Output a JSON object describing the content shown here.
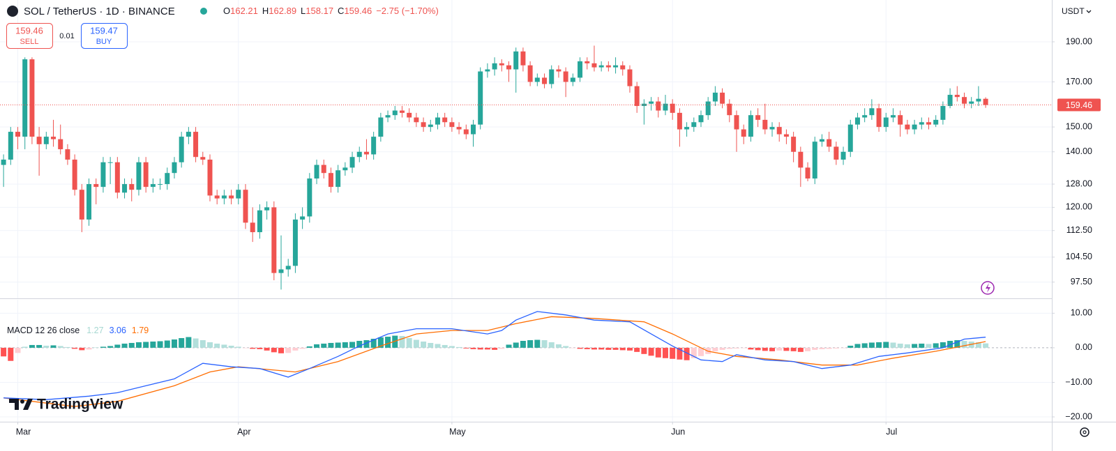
{
  "header": {
    "symbol": "SOL / TetherUS · 1D · BINANCE",
    "o": "O",
    "h": "H",
    "l": "L",
    "c": "C",
    "change": "−2.75 (−1.70%)",
    "currency": "USDT"
  },
  "trade": {
    "sell_price": 159.46,
    "sell": "SELL",
    "spread": 0.01,
    "buy_price": 159.47,
    "buy": "BUY"
  },
  "logo": "TradingView",
  "chart_data": {
    "type": "candlestick",
    "log_scale": true,
    "grid": true,
    "up_color": "#26a69a",
    "down_color": "#ef5350",
    "xlim": [
      -0.5,
      147.3
    ],
    "xticks": [
      {
        "value": 2,
        "label": "Mar"
      },
      {
        "value": 33,
        "label": "Apr"
      },
      {
        "value": 63,
        "label": "May"
      },
      {
        "value": 94,
        "label": "Jun"
      },
      {
        "value": 124,
        "label": "Jul"
      }
    ],
    "ylim": [
      93.2,
      213.4
    ],
    "yticks": [
      {
        "value": 97.5,
        "label": "97.50"
      },
      {
        "value": 104.5,
        "label": "104.50"
      },
      {
        "value": 112.5,
        "label": "112.50"
      },
      {
        "value": 120,
        "label": "120.00"
      },
      {
        "value": 128,
        "label": "128.00"
      },
      {
        "value": 140,
        "label": "140.00"
      },
      {
        "value": 150,
        "label": "150.00"
      },
      {
        "value": 170,
        "label": "170.00"
      },
      {
        "value": 190,
        "label": "190.00"
      }
    ],
    "open": [
      135,
      137,
      148,
      146,
      181,
      146,
      143,
      146,
      145,
      141,
      137,
      126,
      116,
      128,
      127,
      136,
      136,
      125,
      128,
      126,
      136,
      127,
      128,
      128,
      132,
      136,
      146,
      148,
      138,
      137,
      124,
      123,
      124,
      123,
      126,
      115,
      112,
      119,
      120,
      100,
      101,
      102,
      116,
      117,
      130,
      135,
      132,
      127,
      133,
      134,
      138,
      140,
      139,
      146,
      154,
      155,
      157,
      156,
      154,
      152,
      150,
      151,
      154,
      152,
      150,
      149,
      147,
      151,
      175,
      176,
      179,
      178,
      176,
      185,
      178,
      170,
      172,
      169,
      176,
      175,
      170,
      172,
      180,
      179,
      177,
      178,
      177,
      178,
      176,
      168,
      159,
      160,
      161,
      157,
      160,
      156,
      149,
      150,
      152,
      155,
      161,
      165,
      160,
      155,
      149,
      146,
      155,
      153,
      149,
      150,
      147,
      146,
      140,
      134,
      130,
      144,
      145,
      142,
      137,
      140,
      151,
      154,
      155,
      158,
      150,
      154,
      155,
      151,
      149,
      151,
      152,
      151,
      153,
      159,
      164,
      163,
      160,
      161,
      162.21
    ],
    "high": [
      139,
      150,
      150,
      182,
      182,
      150,
      148,
      153,
      151,
      143,
      139,
      128,
      130,
      130,
      138,
      138,
      138,
      130,
      130,
      138,
      138,
      130,
      130,
      134,
      138,
      148,
      150,
      150,
      140,
      139,
      126,
      126,
      126,
      128,
      128,
      120,
      121,
      122,
      122,
      111,
      104,
      118,
      120,
      132,
      137,
      137,
      134,
      135,
      136,
      140,
      142,
      145,
      148,
      156,
      157,
      159,
      159,
      158,
      156,
      154,
      153,
      156,
      156,
      154,
      152,
      151,
      153,
      177,
      179,
      182,
      181,
      180,
      187,
      187,
      180,
      174,
      174,
      178,
      178,
      177,
      174,
      182,
      182,
      188,
      180,
      180,
      182,
      180,
      178,
      170,
      162,
      163,
      163,
      164,
      162,
      158,
      152,
      154,
      157,
      163,
      168,
      167,
      162,
      157,
      151,
      157,
      158,
      160,
      152,
      152,
      149,
      148,
      142,
      136,
      146,
      147,
      148,
      144,
      142,
      153,
      156,
      158,
      162,
      160,
      156,
      158,
      157,
      153,
      153,
      154,
      154,
      155,
      161,
      167,
      168,
      165,
      163,
      168,
      162.89
    ],
    "low": [
      127,
      135,
      141,
      141,
      143,
      131,
      141,
      142,
      139,
      135,
      124,
      112,
      114,
      121,
      125,
      128,
      123,
      123,
      122,
      124,
      125,
      125,
      126,
      126,
      130,
      134,
      143,
      136,
      135,
      122,
      121,
      121,
      121,
      121,
      113,
      109,
      110,
      116,
      98,
      95.5,
      99,
      100,
      113,
      115,
      128,
      130,
      125,
      125,
      131,
      132,
      136,
      137,
      137,
      144,
      152,
      153,
      154,
      152,
      150,
      148,
      148,
      149,
      150,
      148,
      147,
      145,
      142,
      149,
      172,
      173,
      175,
      170,
      165,
      175,
      168,
      168,
      167,
      167,
      172,
      163,
      168,
      170,
      176,
      175,
      175,
      175,
      174,
      173,
      165,
      156,
      151,
      157,
      154,
      155,
      153,
      142,
      146,
      148,
      150,
      153,
      159,
      158,
      152,
      140,
      143,
      144,
      150,
      147,
      146,
      144,
      143,
      136,
      127,
      129,
      128,
      142,
      140,
      135,
      135,
      138,
      149,
      152,
      153,
      148,
      148,
      152,
      146,
      147,
      147,
      149,
      149,
      150,
      151,
      158,
      161,
      158,
      158,
      159,
      158.17
    ],
    "close": [
      137,
      148,
      146,
      181,
      146,
      143,
      146,
      145,
      141,
      137,
      126,
      116,
      128,
      127,
      136,
      136,
      125,
      128,
      126,
      136,
      127,
      128,
      128,
      132,
      136,
      146,
      148,
      138,
      137,
      124,
      123,
      124,
      123,
      126,
      115,
      112,
      119,
      120,
      100,
      101,
      102,
      116,
      117,
      130,
      135,
      132,
      127,
      133,
      134,
      138,
      140,
      139,
      146,
      154,
      155,
      157,
      156,
      154,
      152,
      150,
      151,
      154,
      152,
      150,
      149,
      147,
      151,
      175,
      176,
      179,
      178,
      176,
      185,
      178,
      170,
      172,
      169,
      176,
      175,
      170,
      172,
      180,
      179,
      177,
      178,
      177,
      178,
      176,
      168,
      159,
      160,
      161,
      157,
      160,
      156,
      149,
      150,
      152,
      155,
      161,
      165,
      160,
      155,
      149,
      146,
      155,
      153,
      149,
      150,
      147,
      146,
      140,
      134,
      130,
      144,
      145,
      142,
      137,
      140,
      151,
      154,
      155,
      158,
      150,
      154,
      155,
      151,
      149,
      151,
      152,
      151,
      153,
      159,
      164,
      163,
      160,
      161,
      162.21,
      159.46
    ],
    "macd_title": "MACD 12 26 close",
    "y2lim": [
      -21.4,
      13.9
    ],
    "y2ticks": [
      {
        "value": 10,
        "label": "10.00"
      },
      {
        "value": 0,
        "label": "0.00"
      },
      {
        "value": -10,
        "label": "−10.00"
      },
      {
        "value": -20,
        "label": "−20.00"
      }
    ],
    "histogram": {
      "colors": [
        "#26a69a",
        "#b2dfdb",
        "#ff5252",
        "#ffcdd2"
      ],
      "label_color": "#a7d8d2",
      "values": [
        -2.5,
        -3.8,
        -1.5,
        0.3,
        0.8,
        0.8,
        0.6,
        0.7,
        0.5,
        0.2,
        -0.3,
        -0.7,
        -0.5,
        0.1,
        0.3,
        0.5,
        0.9,
        1.2,
        1.4,
        1.6,
        1.7,
        1.8,
        1.9,
        2.1,
        2.4,
        2.8,
        3.1,
        2.7,
        2.2,
        1.6,
        1.2,
        0.9,
        0.6,
        0.3,
        -0.1,
        -0.3,
        -0.4,
        -0.8,
        -1.3,
        -1.6,
        -1.5,
        -0.8,
        -0.3,
        0.4,
        1.0,
        1.2,
        1.4,
        1.5,
        1.6,
        1.7,
        2.0,
        2.2,
        2.6,
        3.0,
        3.2,
        3.5,
        3.4,
        2.8,
        2.3,
        1.8,
        1.4,
        1.1,
        0.8,
        0.5,
        0.2,
        -0.2,
        -0.4,
        -0.5,
        -0.5,
        -0.6,
        -0.3,
        0.9,
        1.5,
        2.0,
        2.2,
        2.3,
        2.2,
        1.6,
        1.0,
        0.5,
        -0.1,
        -0.3,
        -0.4,
        -0.5,
        -0.5,
        -0.6,
        -0.6,
        -0.7,
        -0.8,
        -1.2,
        -1.8,
        -2.3,
        -2.8,
        -3.0,
        -3.2,
        -3.4,
        -3.6,
        -3.0,
        -2.4,
        -1.8,
        -1.0,
        -0.6,
        -0.3,
        -0.2,
        -0.1,
        -0.5,
        -0.7,
        -0.9,
        -1.0,
        -0.8,
        -0.9,
        -1.0,
        -1.2,
        -1.0,
        -0.6,
        -0.4,
        -0.3,
        -0.2,
        -0.1,
        0.6,
        1.1,
        1.3,
        1.5,
        1.6,
        1.7,
        1.5,
        1.2,
        1.0,
        1.1,
        1.2,
        1.1,
        1.3,
        1.6,
        2.0,
        2.2,
        2.0,
        1.8,
        1.6,
        1.27
      ]
    },
    "macd": {
      "color": "#2962ff",
      "axis": "y2",
      "x": [
        0,
        6,
        12,
        16,
        20,
        24,
        28,
        32,
        36,
        40,
        43,
        47,
        50,
        54,
        58,
        63,
        68,
        70,
        72,
        75,
        79,
        83,
        88,
        91,
        94,
        98,
        101,
        103,
        107,
        111,
        115,
        119,
        123,
        127,
        132,
        135,
        138
      ],
      "values": [
        -14.5,
        -15,
        -14,
        -13,
        -11,
        -9,
        -4.5,
        -5.5,
        -6,
        -8.5,
        -6,
        -2.5,
        0.5,
        4,
        5.5,
        5.5,
        4,
        5,
        8,
        10.5,
        9.5,
        8,
        7.5,
        4,
        0.5,
        -3.5,
        -4,
        -2,
        -3.5,
        -4,
        -6,
        -5,
        -2.5,
        -1.5,
        0,
        2.5,
        3.06
      ]
    },
    "signal": {
      "color": "#ff6d00",
      "axis": "y2",
      "x": [
        0,
        10,
        16,
        24,
        29,
        33,
        41,
        47,
        53,
        58,
        63,
        68,
        72,
        77,
        83,
        90,
        94,
        99,
        103,
        109,
        115,
        120,
        125,
        131,
        138
      ],
      "values": [
        -14.5,
        -17,
        -15.5,
        -11,
        -7,
        -5.5,
        -7,
        -4,
        0.5,
        4,
        5,
        5,
        7,
        9,
        8.5,
        7.5,
        4,
        -1,
        -2.5,
        -3.5,
        -5,
        -5,
        -3,
        -1,
        1.79
      ]
    }
  }
}
